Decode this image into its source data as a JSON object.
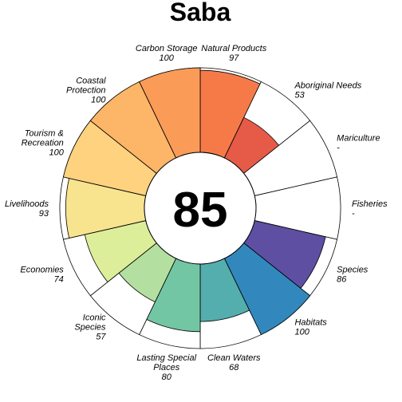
{
  "chart_data": {
    "type": "flower",
    "title": "Saba",
    "score": "85",
    "max_value": 100,
    "petals": [
      {
        "lines": [
          "Natural Products"
        ],
        "value": 97,
        "value_label": "97",
        "color": "#F67A48"
      },
      {
        "lines": [
          "Aboriginal Needs"
        ],
        "value": 53,
        "value_label": "53",
        "color": "#E65A48"
      },
      {
        "lines": [
          "Mariculture"
        ],
        "value": null,
        "value_label": "-",
        "color": "#D53E4F"
      },
      {
        "lines": [
          "Fisheries"
        ],
        "value": null,
        "value_label": "-",
        "color": "#D53E4F"
      },
      {
        "lines": [
          "Species"
        ],
        "value": 86,
        "value_label": "86",
        "color": "#5E4FA2"
      },
      {
        "lines": [
          "Habitats"
        ],
        "value": 100,
        "value_label": "100",
        "color": "#3288BD"
      },
      {
        "lines": [
          "Clean Waters"
        ],
        "value": 68,
        "value_label": "68",
        "color": "#54AEAD"
      },
      {
        "lines": [
          "Lasting Special",
          "Places"
        ],
        "value": 80,
        "value_label": "80",
        "color": "#73C6A4"
      },
      {
        "lines": [
          "Iconic",
          "Species"
        ],
        "value": 57,
        "value_label": "57",
        "color": "#B3E0A0"
      },
      {
        "lines": [
          "Economies"
        ],
        "value": 74,
        "value_label": "74",
        "color": "#DCEE9A"
      },
      {
        "lines": [
          "Livelihoods"
        ],
        "value": 93,
        "value_label": "93",
        "color": "#F8E38F"
      },
      {
        "lines": [
          "Tourism &",
          "Recreation"
        ],
        "value": 100,
        "value_label": "100",
        "color": "#FED27F"
      },
      {
        "lines": [
          "Coastal",
          "Protection"
        ],
        "value": 100,
        "value_label": "100",
        "color": "#FDB567"
      },
      {
        "lines": [
          "Carbon Storage"
        ],
        "value": 100,
        "value_label": "100",
        "color": "#FA9B58"
      }
    ]
  }
}
